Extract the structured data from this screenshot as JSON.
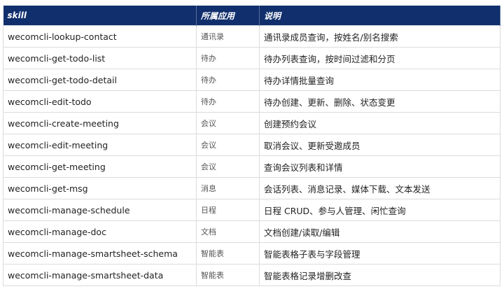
{
  "header": {
    "skill": "skill",
    "app": "所属应用",
    "desc": "说明"
  },
  "header_color": "#102f6c",
  "rows": [
    {
      "skill": "wecomcli-lookup-contact",
      "app": "通讯录",
      "desc": "通讯录成员查询，按姓名/别名搜索"
    },
    {
      "skill": "wecomcli-get-todo-list",
      "app": "待办",
      "desc": "待办列表查询，按时间过滤和分页"
    },
    {
      "skill": "wecomcli-get-todo-detail",
      "app": "待办",
      "desc": "待办详情批量查询"
    },
    {
      "skill": "wecomcli-edit-todo",
      "app": "待办",
      "desc": "待办创建、更新、删除、状态变更"
    },
    {
      "skill": "wecomcli-create-meeting",
      "app": "会议",
      "desc": "创建预约会议"
    },
    {
      "skill": "wecomcli-edit-meeting",
      "app": "会议",
      "desc": "取消会议、更新受邀成员"
    },
    {
      "skill": "wecomcli-get-meeting",
      "app": "会议",
      "desc": "查询会议列表和详情"
    },
    {
      "skill": "wecomcli-get-msg",
      "app": "消息",
      "desc": "会话列表、消息记录、媒体下载、文本发送"
    },
    {
      "skill": "wecomcli-manage-schedule",
      "app": "日程",
      "desc": "日程 CRUD、参与人管理、闲忙查询"
    },
    {
      "skill": "wecomcli-manage-doc",
      "app": "文档",
      "desc": "文档创建/读取/编辑"
    },
    {
      "skill": "wecomcli-manage-smartsheet-schema",
      "app": "智能表",
      "desc": "智能表格子表与字段管理"
    },
    {
      "skill": "wecomcli-manage-smartsheet-data",
      "app": "智能表",
      "desc": "智能表格记录增删改查"
    }
  ]
}
